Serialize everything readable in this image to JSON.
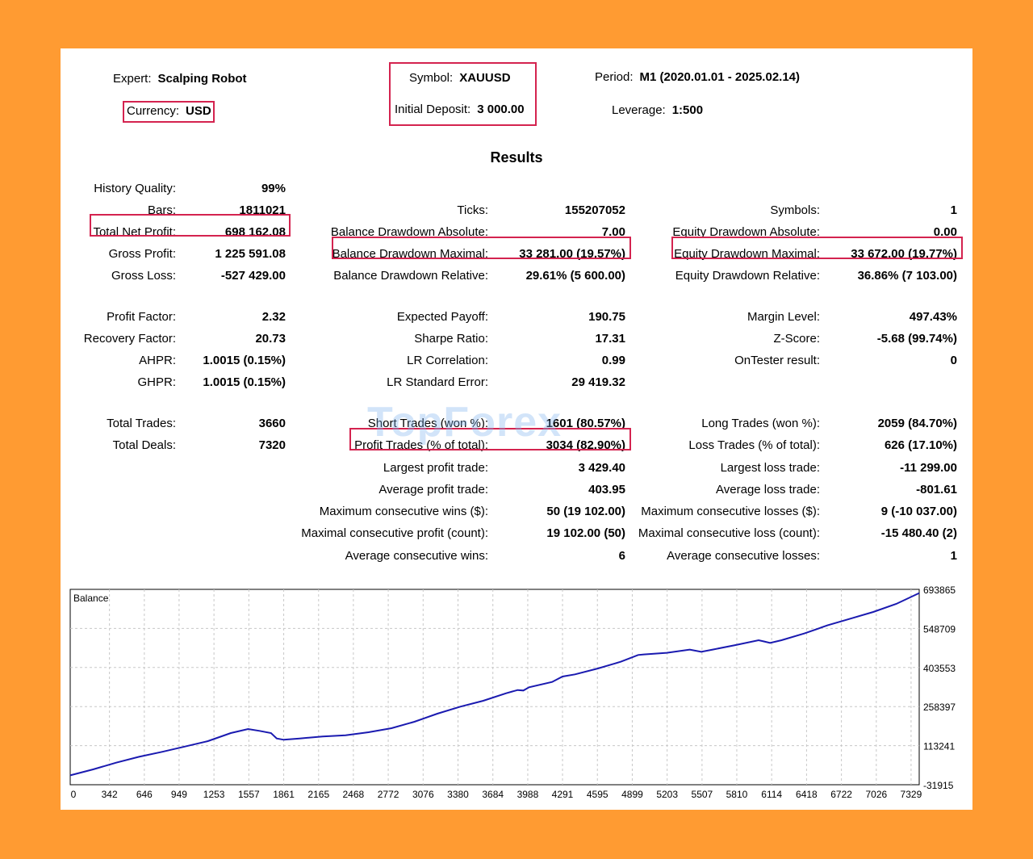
{
  "colors": {
    "frame": "#ff9b32",
    "highlight": "#d4234f",
    "line": "#1a1ab0",
    "grid": "#c8c8c8"
  },
  "header": {
    "expert_label": "Expert:",
    "expert_value": "Scalping Robot",
    "currency_label": "Currency:",
    "currency_value": "USD",
    "symbol_label": "Symbol:",
    "symbol_value": "XAUUSD",
    "deposit_label": "Initial Deposit:",
    "deposit_value": "3 000.00",
    "period_label": "Period:",
    "period_value": "M1 (2020.01.01 - 2025.02.14)",
    "leverage_label": "Leverage:",
    "leverage_value": "1:500"
  },
  "results_title": "Results",
  "col1": [
    {
      "label": "History Quality:",
      "value": "99%"
    },
    {
      "label": "Bars:",
      "value": "1811021"
    },
    {
      "label": "Total Net Profit:",
      "value": "698 162.08"
    },
    {
      "label": "Gross Profit:",
      "value": "1 225 591.08"
    },
    {
      "label": "Gross Loss:",
      "value": "-527 429.00"
    },
    {
      "label": "Profit Factor:",
      "value": "2.32"
    },
    {
      "label": "Recovery Factor:",
      "value": "20.73"
    },
    {
      "label": "AHPR:",
      "value": "1.0015 (0.15%)"
    },
    {
      "label": "GHPR:",
      "value": "1.0015 (0.15%)"
    },
    {
      "label": "Total Trades:",
      "value": "3660"
    },
    {
      "label": "Total Deals:",
      "value": "7320"
    }
  ],
  "col2": [
    {
      "label": "Ticks:",
      "value": "155207052"
    },
    {
      "label": "Balance Drawdown Absolute:",
      "value": "7.00"
    },
    {
      "label": "Balance Drawdown Maximal:",
      "value": "33 281.00 (19.57%)"
    },
    {
      "label": "Balance Drawdown Relative:",
      "value": "29.61% (5 600.00)"
    },
    {
      "label": "Expected Payoff:",
      "value": "190.75"
    },
    {
      "label": "Sharpe Ratio:",
      "value": "17.31"
    },
    {
      "label": "LR Correlation:",
      "value": "0.99"
    },
    {
      "label": "LR Standard Error:",
      "value": "29 419.32"
    },
    {
      "label": "Short Trades (won %):",
      "value": "1601 (80.57%)"
    },
    {
      "label": "Profit Trades (% of total):",
      "value": "3034 (82.90%)"
    },
    {
      "label": "Largest profit trade:",
      "value": "3 429.40"
    },
    {
      "label": "Average profit trade:",
      "value": "403.95"
    },
    {
      "label": "Maximum consecutive wins ($):",
      "value": "50 (19 102.00)"
    },
    {
      "label": "Maximal consecutive profit (count):",
      "value": "19 102.00 (50)"
    },
    {
      "label": "Average consecutive wins:",
      "value": "6"
    }
  ],
  "col3": [
    {
      "label": "Symbols:",
      "value": "1"
    },
    {
      "label": "Equity Drawdown Absolute:",
      "value": "0.00"
    },
    {
      "label": "Equity Drawdown Maximal:",
      "value": "33 672.00 (19.77%)"
    },
    {
      "label": "Equity Drawdown Relative:",
      "value": "36.86% (7 103.00)"
    },
    {
      "label": "Margin Level:",
      "value": "497.43%"
    },
    {
      "label": "Z-Score:",
      "value": "-5.68 (99.74%)"
    },
    {
      "label": "OnTester result:",
      "value": "0"
    },
    {
      "label": "Long Trades (won %):",
      "value": "2059 (84.70%)"
    },
    {
      "label": "Loss Trades (% of total):",
      "value": "626 (17.10%)"
    },
    {
      "label": "Largest loss trade:",
      "value": "-11 299.00"
    },
    {
      "label": "Average loss trade:",
      "value": "-801.61"
    },
    {
      "label": "Maximum consecutive losses ($):",
      "value": "9 (-10 037.00)"
    },
    {
      "label": "Maximal consecutive loss (count):",
      "value": "-15 480.40 (2)"
    },
    {
      "label": "Average consecutive losses:",
      "value": "1"
    }
  ],
  "watermark": "TopForex",
  "chart_data": {
    "type": "line",
    "title": "Balance",
    "x_ticks": [
      "0",
      "342",
      "646",
      "949",
      "1253",
      "1557",
      "1861",
      "2165",
      "2468",
      "2772",
      "3076",
      "3380",
      "3684",
      "3988",
      "4291",
      "4595",
      "4899",
      "5203",
      "5507",
      "5810",
      "6114",
      "6418",
      "6722",
      "7026",
      "7329"
    ],
    "y_ticks": [
      "693865",
      "548709",
      "403553",
      "258397",
      "113241",
      "-31915"
    ],
    "xlim": [
      0,
      7400
    ],
    "ylim": [
      -31915,
      693865
    ],
    "series": [
      {
        "x": [
          0,
          200,
          400,
          600,
          800,
          1000,
          1200,
          1400,
          1550,
          1650,
          1750,
          1800,
          1861,
          2000,
          2200,
          2400,
          2600,
          2800,
          3000,
          3200,
          3400,
          3600,
          3800,
          3900,
          3950,
          4000,
          4200,
          4291,
          4400,
          4600,
          4800,
          4950,
          5000,
          5200,
          5400,
          5500,
          5600,
          5800,
          6000,
          6050,
          6100,
          6200,
          6400,
          6600,
          6800,
          7000,
          7200,
          7400
        ],
        "y": [
          3000,
          25000,
          50000,
          72000,
          90000,
          110000,
          130000,
          160000,
          175000,
          168000,
          160000,
          140000,
          135000,
          140000,
          147000,
          152000,
          163000,
          178000,
          202000,
          232000,
          258000,
          280000,
          308000,
          320000,
          318000,
          330000,
          350000,
          370000,
          378000,
          400000,
          425000,
          450000,
          452000,
          458000,
          470000,
          462000,
          470000,
          487000,
          505000,
          500000,
          495000,
          505000,
          530000,
          560000,
          585000,
          610000,
          640000,
          680000
        ]
      }
    ]
  }
}
